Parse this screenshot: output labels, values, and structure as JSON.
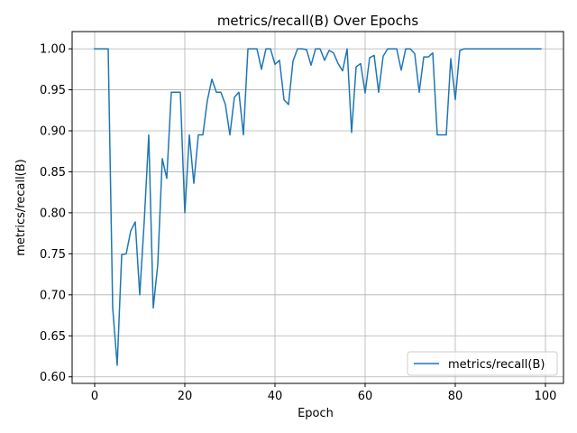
{
  "chart_data": {
    "type": "line",
    "title": "metrics/recall(B) Over Epochs",
    "xlabel": "Epoch",
    "ylabel": "metrics/recall(B)",
    "xlim": [
      -5,
      104
    ],
    "ylim": [
      0.592,
      1.021
    ],
    "xticks": [
      0,
      20,
      40,
      60,
      80,
      100
    ],
    "xtick_labels": [
      "0",
      "20",
      "40",
      "60",
      "80",
      "100"
    ],
    "yticks": [
      0.6,
      0.65,
      0.7,
      0.75,
      0.8,
      0.85,
      0.9,
      0.95,
      1.0
    ],
    "ytick_labels": [
      "0.60",
      "0.65",
      "0.70",
      "0.75",
      "0.80",
      "0.85",
      "0.90",
      "0.95",
      "1.00"
    ],
    "grid": true,
    "legend_position": "lower-right",
    "series": [
      {
        "name": "metrics/recall(B)",
        "color": "#1f77b4",
        "x": [
          0,
          1,
          2,
          3,
          4,
          5,
          6,
          7,
          8,
          9,
          10,
          11,
          12,
          13,
          14,
          15,
          16,
          17,
          18,
          19,
          20,
          21,
          22,
          23,
          24,
          25,
          26,
          27,
          28,
          29,
          30,
          31,
          32,
          33,
          34,
          35,
          36,
          37,
          38,
          39,
          40,
          41,
          42,
          43,
          44,
          45,
          46,
          47,
          48,
          49,
          50,
          51,
          52,
          53,
          54,
          55,
          56,
          57,
          58,
          59,
          60,
          61,
          62,
          63,
          64,
          65,
          66,
          67,
          68,
          69,
          70,
          71,
          72,
          73,
          74,
          75,
          76,
          77,
          78,
          79,
          80,
          81,
          82,
          83,
          84,
          85,
          86,
          87,
          88,
          89,
          90,
          91,
          92,
          93,
          94,
          95,
          96,
          97,
          98,
          99
        ],
        "values": [
          1.0,
          1.0,
          1.0,
          1.0,
          0.684,
          0.614,
          0.749,
          0.75,
          0.778,
          0.789,
          0.7,
          0.79,
          0.895,
          0.684,
          0.737,
          0.866,
          0.842,
          0.947,
          0.947,
          0.947,
          0.8,
          0.895,
          0.836,
          0.895,
          0.895,
          0.937,
          0.963,
          0.947,
          0.947,
          0.932,
          0.895,
          0.941,
          0.947,
          0.895,
          1.0,
          1.0,
          1.0,
          0.975,
          1.0,
          1.0,
          0.981,
          0.986,
          0.938,
          0.932,
          0.985,
          1.0,
          1.0,
          0.999,
          0.98,
          1.0,
          1.0,
          0.986,
          0.998,
          0.995,
          0.982,
          0.973,
          1.0,
          0.898,
          0.978,
          0.982,
          0.946,
          0.989,
          0.992,
          0.947,
          0.991,
          1.0,
          1.0,
          1.0,
          0.974,
          1.0,
          1.0,
          0.994,
          0.947,
          0.99,
          0.99,
          0.995,
          0.895,
          0.895,
          0.895,
          0.988,
          0.938,
          0.998,
          1.0,
          1.0,
          1.0,
          1.0,
          1.0,
          1.0,
          1.0,
          1.0,
          1.0,
          1.0,
          1.0,
          1.0,
          1.0,
          1.0,
          1.0,
          1.0,
          1.0,
          1.0
        ]
      }
    ]
  }
}
